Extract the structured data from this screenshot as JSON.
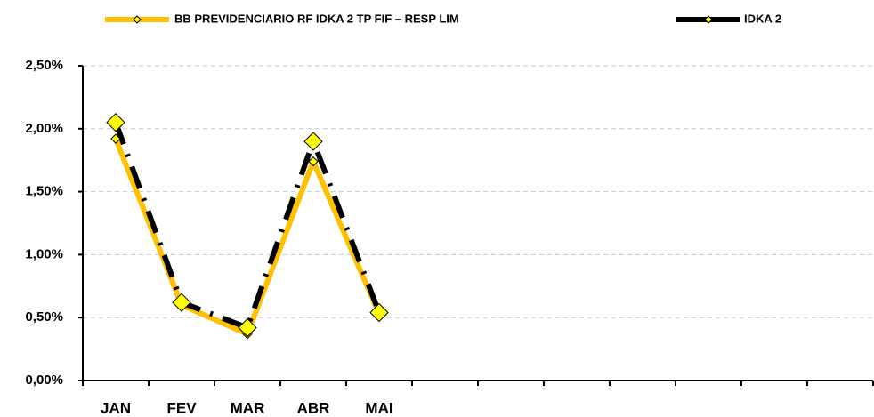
{
  "chart_data": {
    "type": "line",
    "categories": [
      "JAN",
      "FEV",
      "MAR",
      "ABR",
      "MAI",
      null,
      null,
      null,
      null,
      null,
      null,
      null
    ],
    "series": [
      {
        "name": "BB PREVIDENCIARIO RF IDKA 2 TP FIF – RESP LIM",
        "color": "#FFC000",
        "marker_color": "#FFFF00",
        "marker_size": "small",
        "dash": "solid",
        "values": [
          1.92,
          0.6,
          0.37,
          1.74,
          0.53,
          null,
          null,
          null,
          null,
          null,
          null,
          null
        ]
      },
      {
        "name": "IDKA 2",
        "color": "#000000",
        "marker_color": "#FFFF00",
        "marker_size": "large",
        "dash": "dashed",
        "values": [
          2.05,
          0.62,
          0.42,
          1.9,
          0.54,
          null,
          null,
          null,
          null,
          null,
          null,
          null
        ]
      }
    ],
    "ylim": [
      0,
      2.5
    ],
    "yticks": [
      {
        "value": 0,
        "label": "0,00%"
      },
      {
        "value": 0.5,
        "label": "0,50%"
      },
      {
        "value": 1,
        "label": "1,00%"
      },
      {
        "value": 1.5,
        "label": "1,50%"
      },
      {
        "value": 2,
        "label": "2,00%"
      },
      {
        "value": 2.5,
        "label": "2,50%"
      }
    ],
    "grid": true,
    "legend": "top"
  }
}
